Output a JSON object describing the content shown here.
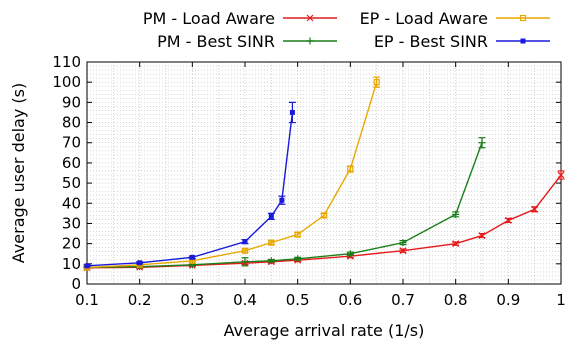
{
  "chart_data": {
    "type": "line",
    "xlabel": "Average arrival rate (1/s)",
    "ylabel": "Average user delay (s)",
    "xlim": [
      0.1,
      1.0
    ],
    "ylim": [
      0,
      110
    ],
    "x_ticks": [
      "0.1",
      "0.2",
      "0.3",
      "0.4",
      "0.5",
      "0.6",
      "0.7",
      "0.8",
      "0.9",
      "1"
    ],
    "y_ticks": [
      "0",
      "10",
      "20",
      "30",
      "40",
      "50",
      "60",
      "70",
      "80",
      "90",
      "100",
      "110"
    ],
    "grid": "dotted",
    "legend_position": "top",
    "series": [
      {
        "name": "PM - Load Aware",
        "color": "#e41a1c",
        "marker": "x",
        "points": [
          {
            "x": 0.1,
            "y": 8,
            "err": 0.5
          },
          {
            "x": 0.2,
            "y": 8.3,
            "err": 0.5
          },
          {
            "x": 0.3,
            "y": 9.2,
            "err": 0.5
          },
          {
            "x": 0.4,
            "y": 10.3,
            "err": 0.6
          },
          {
            "x": 0.45,
            "y": 11,
            "err": 0.6
          },
          {
            "x": 0.5,
            "y": 11.8,
            "err": 0.7
          },
          {
            "x": 0.6,
            "y": 13.8,
            "err": 0.8
          },
          {
            "x": 0.7,
            "y": 16.5,
            "err": 0.8
          },
          {
            "x": 0.8,
            "y": 20,
            "err": 0.8
          },
          {
            "x": 0.85,
            "y": 24,
            "err": 1
          },
          {
            "x": 0.9,
            "y": 31.5,
            "err": 1
          },
          {
            "x": 0.95,
            "y": 37,
            "err": 1.2
          },
          {
            "x": 1.0,
            "y": 54,
            "err": 2
          }
        ]
      },
      {
        "name": "PM - Best SINR",
        "color": "#1a7f1a",
        "marker": "+",
        "points": [
          {
            "x": 0.1,
            "y": 8.2,
            "err": 0.5
          },
          {
            "x": 0.2,
            "y": 8.6,
            "err": 0.5
          },
          {
            "x": 0.3,
            "y": 9.5,
            "err": 0.5
          },
          {
            "x": 0.4,
            "y": 11,
            "err": 2
          },
          {
            "x": 0.45,
            "y": 11.5,
            "err": 0.6
          },
          {
            "x": 0.5,
            "y": 12.5,
            "err": 0.7
          },
          {
            "x": 0.6,
            "y": 15,
            "err": 0.8
          },
          {
            "x": 0.7,
            "y": 20.5,
            "err": 1
          },
          {
            "x": 0.8,
            "y": 34.5,
            "err": 1.2
          },
          {
            "x": 0.85,
            "y": 70,
            "err": 2.5
          }
        ]
      },
      {
        "name": "EP - Load Aware",
        "color": "#e8a800",
        "marker": "square",
        "points": [
          {
            "x": 0.1,
            "y": 8.2,
            "err": 0.5
          },
          {
            "x": 0.2,
            "y": 9.5,
            "err": 0.5
          },
          {
            "x": 0.3,
            "y": 11.5,
            "err": 0.5
          },
          {
            "x": 0.4,
            "y": 16.5,
            "err": 0.8
          },
          {
            "x": 0.45,
            "y": 20.5,
            "err": 0.8
          },
          {
            "x": 0.5,
            "y": 24.5,
            "err": 1
          },
          {
            "x": 0.55,
            "y": 34,
            "err": 1
          },
          {
            "x": 0.6,
            "y": 57,
            "err": 1.5
          },
          {
            "x": 0.65,
            "y": 100,
            "err": 2.5
          }
        ]
      },
      {
        "name": "EP - Best SINR",
        "color": "#1a1adc",
        "marker": "filled-square",
        "points": [
          {
            "x": 0.1,
            "y": 9,
            "err": 0.5
          },
          {
            "x": 0.2,
            "y": 10.5,
            "err": 0.5
          },
          {
            "x": 0.3,
            "y": 13.2,
            "err": 0.6
          },
          {
            "x": 0.4,
            "y": 21,
            "err": 1
          },
          {
            "x": 0.45,
            "y": 33.5,
            "err": 1.5
          },
          {
            "x": 0.47,
            "y": 41.5,
            "err": 2
          },
          {
            "x": 0.49,
            "y": 85,
            "err": 5
          }
        ]
      }
    ]
  }
}
